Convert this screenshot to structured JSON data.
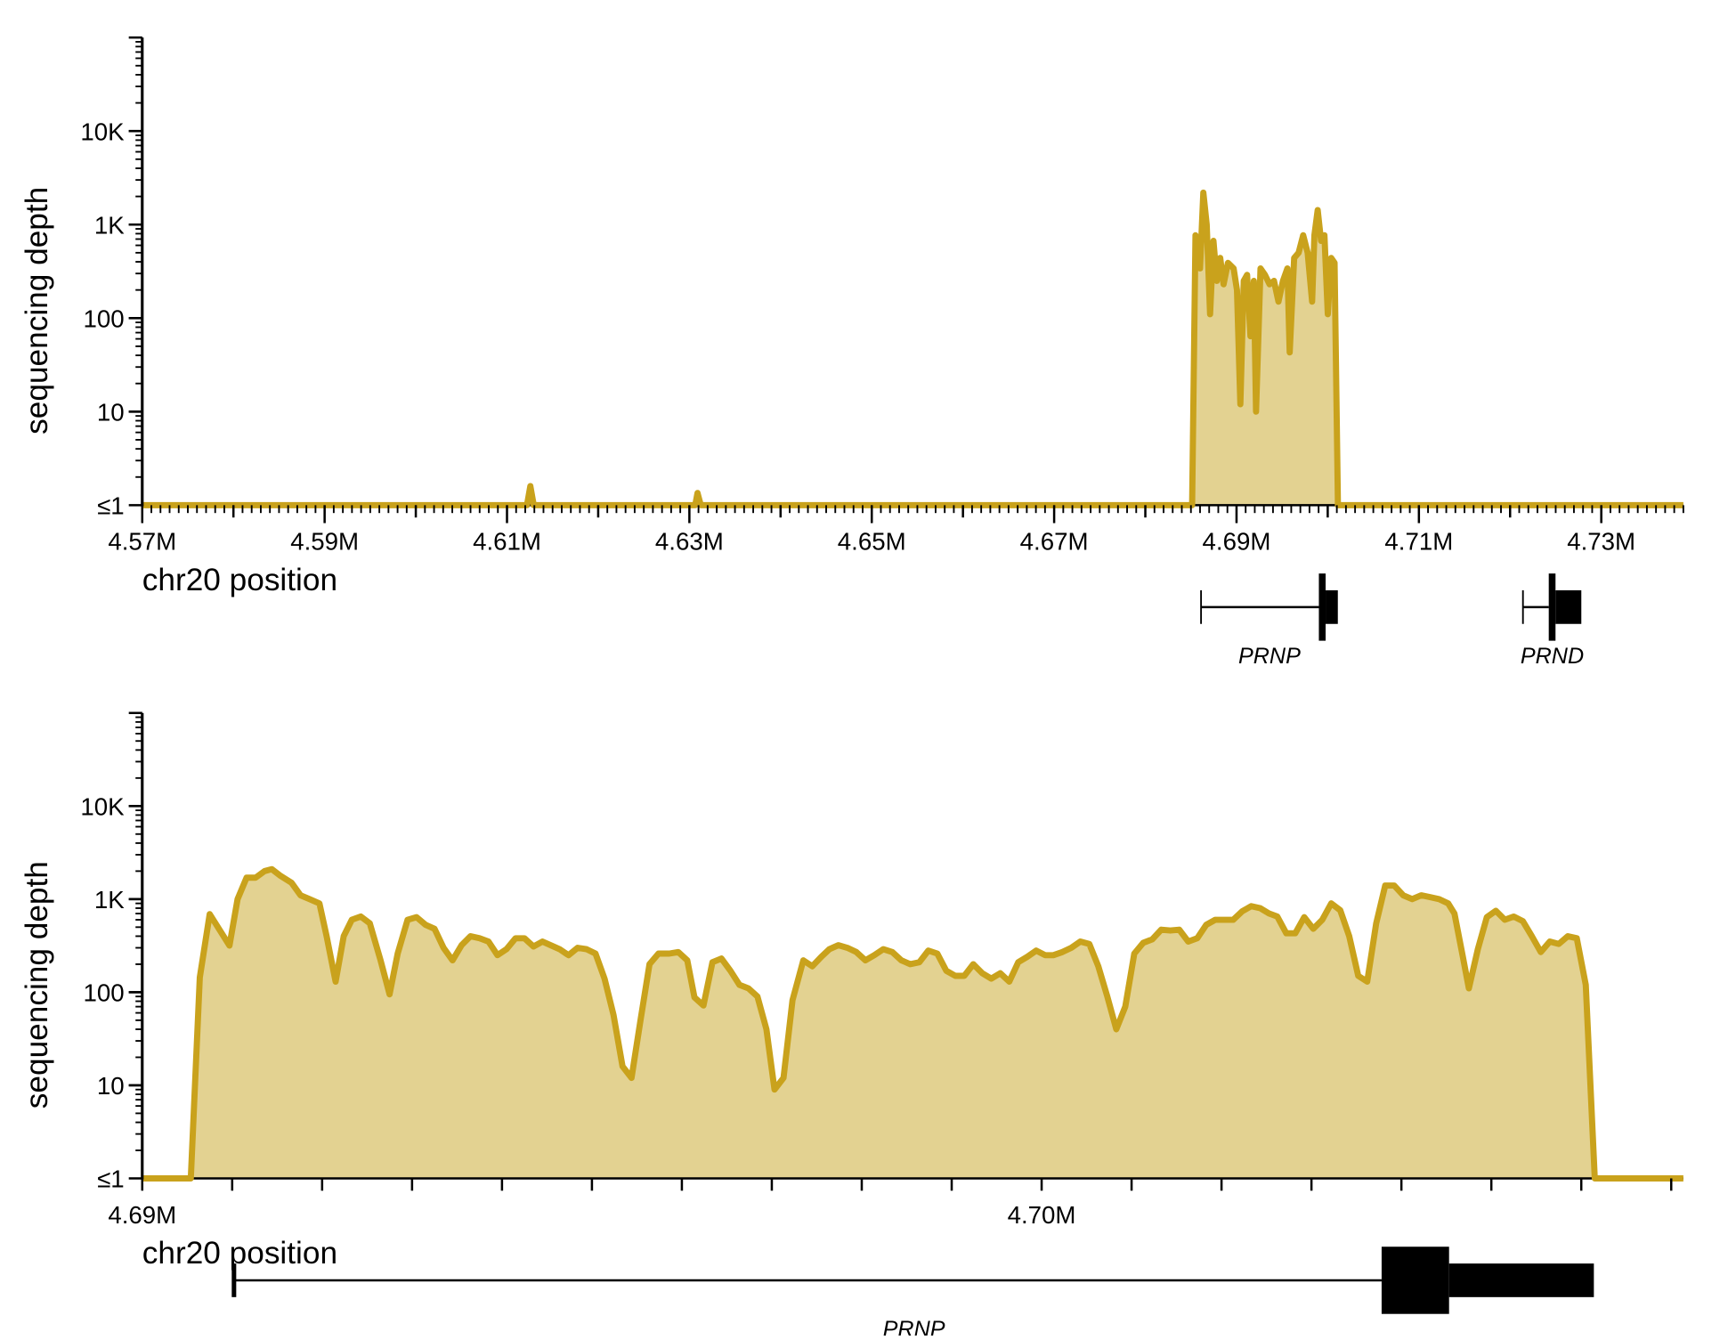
{
  "chart_data": [
    {
      "type": "area",
      "y_label": "sequencing depth",
      "x_label": "chr20 position",
      "log_y": true,
      "minor_ticks": true,
      "xlim": [
        4570000,
        4739000
      ],
      "ylim": [
        1,
        100000
      ],
      "xticks": [
        {
          "value": 4570000,
          "label": "4.57M"
        },
        {
          "value": 4580000,
          "label": null
        },
        {
          "value": 4590000,
          "label": "4.59M"
        },
        {
          "value": 4600000,
          "label": null
        },
        {
          "value": 4610000,
          "label": "4.61M"
        },
        {
          "value": 4620000,
          "label": null
        },
        {
          "value": 4630000,
          "label": "4.63M"
        },
        {
          "value": 4640000,
          "label": null
        },
        {
          "value": 4650000,
          "label": "4.65M"
        },
        {
          "value": 4660000,
          "label": null
        },
        {
          "value": 4670000,
          "label": "4.67M"
        },
        {
          "value": 4680000,
          "label": null
        },
        {
          "value": 4690000,
          "label": "4.69M"
        },
        {
          "value": 4700000,
          "label": null
        },
        {
          "value": 4710000,
          "label": "4.71M"
        },
        {
          "value": 4720000,
          "label": null
        },
        {
          "value": 4730000,
          "label": "4.73M"
        }
      ],
      "yticks": [
        {
          "value": 1,
          "label": "≤1"
        },
        10,
        100,
        {
          "value": 1000,
          "label": "1K"
        },
        {
          "value": 10000,
          "label": "10K"
        }
      ],
      "x": [
        4570000,
        4612190,
        4612560,
        4612930,
        4630640,
        4630890,
        4631250,
        4685130,
        4685500,
        4686000,
        4686360,
        4686730,
        4687100,
        4687470,
        4687840,
        4688210,
        4688580,
        4689060,
        4689680,
        4690050,
        4690420,
        4690790,
        4691160,
        4691530,
        4691900,
        4692140,
        4692630,
        4693120,
        4693620,
        4694110,
        4694600,
        4695090,
        4695580,
        4695830,
        4696320,
        4696810,
        4697310,
        4697800,
        4698290,
        4698540,
        4698900,
        4699270,
        4699640,
        4700010,
        4700380,
        4700750,
        4701120,
        4739000
      ],
      "series": [
        {
          "color": "#c9a21c",
          "fill": "#e3d291",
          "values": [
            1,
            1,
            1.6,
            1,
            1,
            1.35,
            1,
            1,
            770,
            340,
            2200,
            1000,
            110,
            670,
            250,
            440,
            230,
            390,
            340,
            200,
            12,
            250,
            290,
            64,
            250,
            10,
            340,
            290,
            230,
            250,
            150,
            250,
            340,
            43,
            440,
            500,
            770,
            500,
            150,
            770,
            1430,
            670,
            770,
            110,
            440,
            390,
            1,
            1
          ]
        }
      ],
      "genes": [
        {
          "name": "PRNP",
          "start": 4686110,
          "exon_start": 4699030,
          "cds_end": 4699770,
          "end": 4701110
        },
        {
          "name": "PRND",
          "start": 4721410,
          "exon_start": 4724240,
          "cds_end": 4724980,
          "end": 4727810
        }
      ]
    },
    {
      "type": "area",
      "y_label": "sequencing depth",
      "x_label": "chr20 position",
      "log_y": true,
      "minor_ticks": false,
      "xlim": [
        4690000,
        4707135
      ],
      "ylim": [
        1,
        100000
      ],
      "xticks": [
        {
          "value": 4690000,
          "label": "4.69M"
        },
        {
          "value": 4691000,
          "label": null
        },
        {
          "value": 4692000,
          "label": null
        },
        {
          "value": 4693000,
          "label": null
        },
        {
          "value": 4694000,
          "label": null
        },
        {
          "value": 4695000,
          "label": null
        },
        {
          "value": 4696000,
          "label": null
        },
        {
          "value": 4697000,
          "label": null
        },
        {
          "value": 4698000,
          "label": null
        },
        {
          "value": 4699000,
          "label": null
        },
        {
          "value": 4700000,
          "label": "4.70M"
        },
        {
          "value": 4701000,
          "label": null
        },
        {
          "value": 4702000,
          "label": null
        },
        {
          "value": 4703000,
          "label": null
        },
        {
          "value": 4704000,
          "label": null
        },
        {
          "value": 4705000,
          "label": null
        },
        {
          "value": 4706000,
          "label": null
        },
        {
          "value": 4707000,
          "label": null
        }
      ],
      "yticks": [
        {
          "value": 1,
          "label": "≤1"
        },
        10,
        100,
        {
          "value": 1000,
          "label": "1K"
        },
        {
          "value": 10000,
          "label": "10K"
        }
      ],
      "x": [
        4690000,
        4690540,
        4690640,
        4690750,
        4690970,
        4691060,
        4691160,
        4691260,
        4691360,
        4691440,
        4691530,
        4691660,
        4691760,
        4691860,
        4691970,
        4692050,
        4692150,
        4692240,
        4692330,
        4692430,
        4692530,
        4692650,
        4692750,
        4692840,
        4692950,
        4693050,
        4693150,
        4693250,
        4693350,
        4693450,
        4693550,
        4693650,
        4693750,
        4693850,
        4693950,
        4694050,
        4694150,
        4694250,
        4694350,
        4694450,
        4694540,
        4694640,
        4694740,
        4694840,
        4694940,
        4695040,
        4695140,
        4695240,
        4695340,
        4695440,
        4695540,
        4695640,
        4695740,
        4695860,
        4695960,
        4696060,
        4696140,
        4696240,
        4696340,
        4696440,
        4696540,
        4696640,
        4696740,
        4696840,
        4696940,
        4697030,
        4697130,
        4697230,
        4697350,
        4697450,
        4697550,
        4697640,
        4697740,
        4697840,
        4697940,
        4698040,
        4698140,
        4698240,
        4698340,
        4698440,
        4698540,
        4698640,
        4698740,
        4698840,
        4698940,
        4699040,
        4699140,
        4699240,
        4699340,
        4699440,
        4699540,
        4699640,
        4699740,
        4699840,
        4699940,
        4700040,
        4700130,
        4700230,
        4700330,
        4700430,
        4700530,
        4700630,
        4700730,
        4700830,
        4700930,
        4701030,
        4701130,
        4701230,
        4701330,
        4701430,
        4701530,
        4701630,
        4701730,
        4701830,
        4701930,
        4702030,
        4702130,
        4702230,
        4702330,
        4702430,
        4702530,
        4702620,
        4702720,
        4702820,
        4702920,
        4703020,
        4703120,
        4703220,
        4703320,
        4703420,
        4703520,
        4703620,
        4703720,
        4703820,
        4703920,
        4704020,
        4704120,
        4704220,
        4704320,
        4704420,
        4704520,
        4704590,
        4704680,
        4704750,
        4704850,
        4704950,
        4705050,
        4705150,
        4705250,
        4705350,
        4705450,
        4705550,
        4705650,
        4705750,
        4705850,
        4705950,
        4706050,
        4706150,
        4707135
      ],
      "series": [
        {
          "color": "#c9a21c",
          "fill": "#e3d291",
          "values": [
            1,
            1,
            144,
            690,
            317,
            1000,
            1700,
            1700,
            2000,
            2100,
            1800,
            1500,
            1100,
            1000,
            900,
            400,
            130,
            400,
            600,
            650,
            550,
            220,
            95,
            260,
            600,
            640,
            530,
            480,
            300,
            220,
            320,
            400,
            380,
            350,
            250,
            290,
            380,
            380,
            310,
            350,
            320,
            290,
            250,
            300,
            290,
            260,
            140,
            57,
            16,
            12,
            50,
            200,
            260,
            260,
            270,
            220,
            88,
            72,
            210,
            230,
            170,
            120,
            110,
            90,
            40,
            9,
            12,
            82,
            220,
            190,
            240,
            290,
            320,
            300,
            270,
            220,
            250,
            290,
            270,
            220,
            200,
            210,
            280,
            260,
            170,
            150,
            150,
            200,
            160,
            140,
            160,
            130,
            210,
            240,
            280,
            250,
            250,
            270,
            300,
            350,
            330,
            190,
            90,
            40,
            70,
            260,
            340,
            370,
            470,
            460,
            470,
            350,
            380,
            530,
            600,
            600,
            600,
            740,
            840,
            800,
            700,
            650,
            430,
            430,
            640,
            480,
            600,
            900,
            760,
            400,
            150,
            130,
            550,
            1400,
            1400,
            1100,
            1000,
            1100,
            1050,
            1000,
            900,
            700,
            250,
            110,
            290,
            640,
            750,
            600,
            650,
            580,
            400,
            270,
            350,
            330,
            400,
            380,
            120,
            1,
            1
          ]
        }
      ],
      "genes": [
        {
          "name": "PRNP",
          "start": 4691020,
          "exon_start": 4703780,
          "cds_end": 4704530,
          "end": 4706140
        }
      ]
    }
  ]
}
